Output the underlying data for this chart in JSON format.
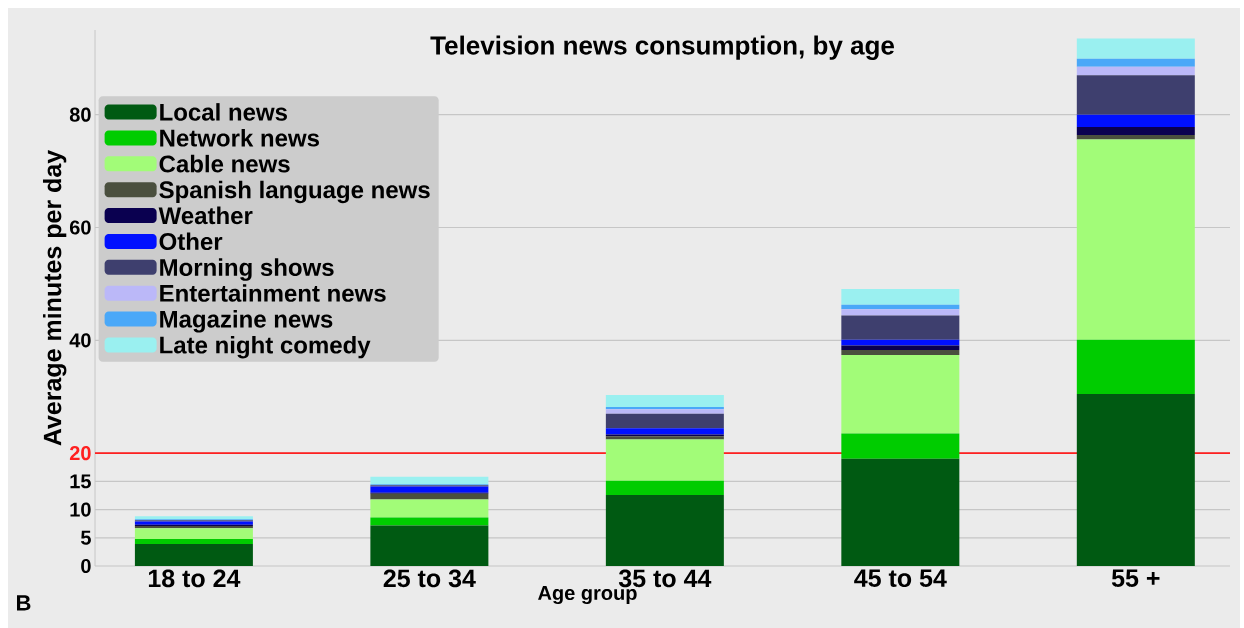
{
  "chart_data": {
    "type": "bar",
    "stacked": true,
    "title": "Television news consumption, by age",
    "xlabel": "Age group",
    "ylabel": "Average minutes per day",
    "categories": [
      "18 to 24",
      "25 to 34",
      "35 to 44",
      "45 to 54",
      "55 +"
    ],
    "series": [
      {
        "name": "Local news",
        "color": "#005a12",
        "values": [
          3.9,
          7.2,
          12.6,
          19.0,
          30.5
        ]
      },
      {
        "name": "Network news",
        "color": "#00cc00",
        "values": [
          0.9,
          1.4,
          2.5,
          4.5,
          9.6
        ]
      },
      {
        "name": "Cable news",
        "color": "#a2fc78",
        "values": [
          1.9,
          3.2,
          7.3,
          13.9,
          35.5
        ]
      },
      {
        "name": "Spanish language news",
        "color": "#4a4f3e",
        "values": [
          0.4,
          1.0,
          0.6,
          0.9,
          0.8
        ]
      },
      {
        "name": "Weather",
        "color": "#0a0050",
        "values": [
          0.2,
          0.2,
          0.3,
          0.8,
          1.4
        ]
      },
      {
        "name": "Other",
        "color": "#0010ff",
        "values": [
          0.6,
          1.1,
          1.1,
          1.0,
          2.2
        ]
      },
      {
        "name": "Morning shows",
        "color": "#3e3f6e",
        "values": [
          0.2,
          0.2,
          2.6,
          4.3,
          7.0
        ]
      },
      {
        "name": "Entertainment news",
        "color": "#bbb8f8",
        "values": [
          null,
          null,
          0.8,
          1.1,
          1.5
        ]
      },
      {
        "name": "Magazine news",
        "color": "#4aa8f8",
        "values": [
          0.2,
          0.2,
          0.4,
          0.8,
          1.4
        ]
      },
      {
        "name": "Late night comedy",
        "color": "#9af0f0",
        "values": [
          0.5,
          1.3,
          2.1,
          2.8,
          3.6
        ]
      }
    ],
    "ylim": [
      0,
      95
    ],
    "yticks": [
      0,
      5,
      10,
      15,
      20,
      40,
      60,
      80
    ],
    "ref_lines": [
      {
        "axis": "y",
        "value": 20,
        "color": "#ff2020"
      }
    ],
    "grid": "y",
    "legend": "top left",
    "annotations": [
      "B"
    ]
  }
}
